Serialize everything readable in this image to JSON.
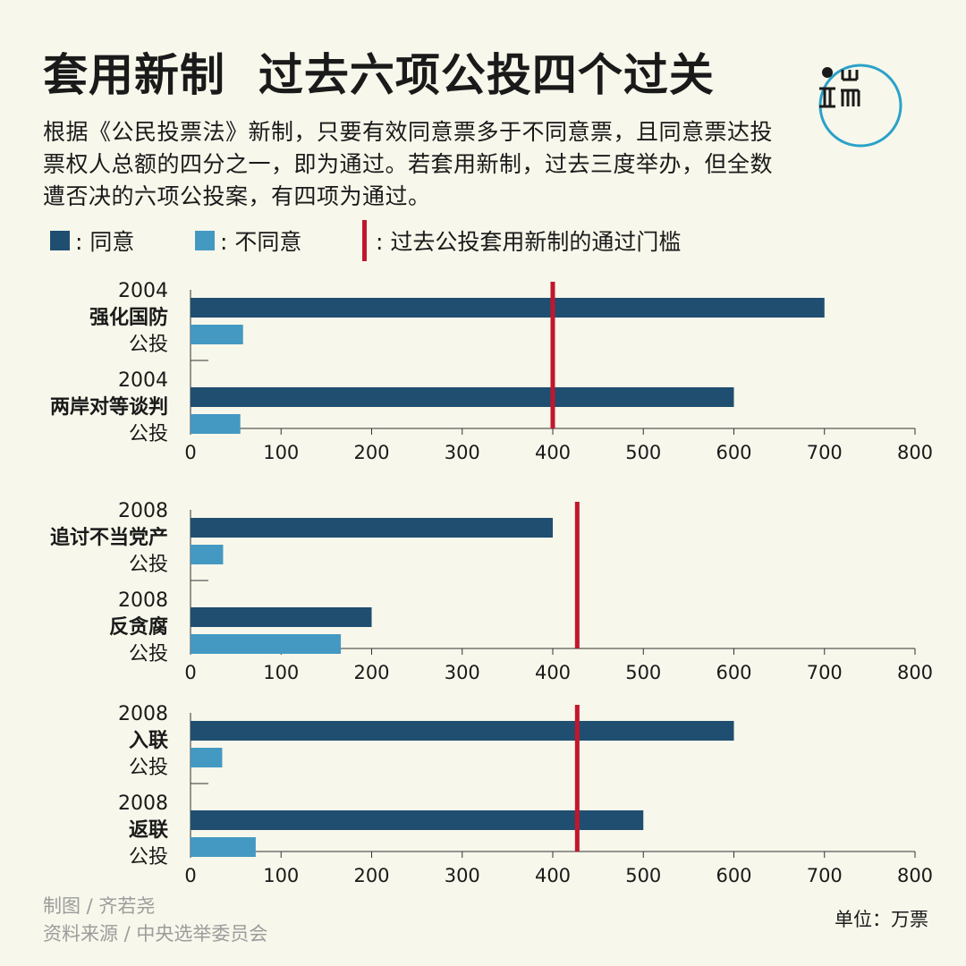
{
  "header": {
    "title": "套用新制  过去六项公投四个过关",
    "description": "根据《公民投票法》新制，只要有效同意票多于不同意票，且同意票达投票权人总额的四分之一，即为通过。若套用新制，过去三度举办，但全数遭否决的六项公投案，有四项为通过。"
  },
  "legend": {
    "agree": ": 同意",
    "disagree": ": 不同意",
    "threshold": ": 过去公投套用新制的通过门槛"
  },
  "colors": {
    "agree": "#1f4e70",
    "disagree": "#4499c3",
    "threshold": "#c1172c",
    "logo": "#2aa2c9"
  },
  "chart_data": [
    {
      "type": "bar",
      "orientation": "horizontal",
      "xlim": [
        0,
        800
      ],
      "xticks": [
        0,
        100,
        200,
        300,
        400,
        500,
        600,
        700,
        800
      ],
      "threshold": 400,
      "categories": [
        {
          "year": "2004",
          "name": "强化国防",
          "suffix": "公投"
        },
        {
          "year": "2004",
          "name": "两岸对等谈判",
          "suffix": "公投"
        }
      ],
      "series": [
        {
          "name": "同意",
          "values": [
            700,
            600
          ]
        },
        {
          "name": "不同意",
          "values": [
            58,
            55
          ]
        }
      ]
    },
    {
      "type": "bar",
      "orientation": "horizontal",
      "xlim": [
        0,
        800
      ],
      "xticks": [
        0,
        100,
        200,
        300,
        400,
        500,
        600,
        700,
        800
      ],
      "threshold": 427,
      "categories": [
        {
          "year": "2008",
          "name": "追讨不当党产",
          "suffix": "公投"
        },
        {
          "year": "2008",
          "name": "反贪腐",
          "suffix": "公投"
        }
      ],
      "series": [
        {
          "name": "同意",
          "values": [
            400,
            200
          ]
        },
        {
          "name": "不同意",
          "values": [
            36,
            166
          ]
        }
      ]
    },
    {
      "type": "bar",
      "orientation": "horizontal",
      "xlim": [
        0,
        800
      ],
      "xticks": [
        0,
        100,
        200,
        300,
        400,
        500,
        600,
        700,
        800
      ],
      "threshold": 427,
      "categories": [
        {
          "year": "2008",
          "name": "入联",
          "suffix": "公投"
        },
        {
          "year": "2008",
          "name": "返联",
          "suffix": "公投"
        }
      ],
      "series": [
        {
          "name": "同意",
          "values": [
            600,
            500
          ]
        },
        {
          "name": "不同意",
          "values": [
            35,
            72
          ]
        }
      ]
    }
  ],
  "footer": {
    "credit": "制图 / 齐若尧",
    "source": "资料来源 / 中央选举委员会",
    "unit": "单位：万票"
  }
}
